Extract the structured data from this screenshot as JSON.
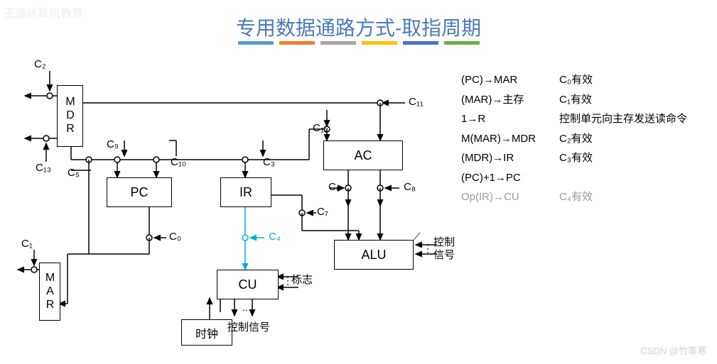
{
  "watermark_top": "王道计算机教育",
  "watermark_bottom": "CSDN @竹等寒",
  "title": "专用数据通路方式-取指周期",
  "color_bars": [
    "#5b9bd5",
    "#ed7d31",
    "#a5a5a5",
    "#ffc000",
    "#4472c4",
    "#70ad47"
  ],
  "boxes": {
    "mdr": "MDR",
    "mar": "MAR",
    "pc": "PC",
    "ir": "IR",
    "ac": "AC",
    "alu": "ALU",
    "cu": "CU",
    "clock": "时钟"
  },
  "labels": {
    "c0": "C₀",
    "c1": "C₁",
    "c2": "C₂",
    "c3": "C₃",
    "c4": "C₄",
    "c5": "C₅",
    "c6": "C₆",
    "c7": "C₇",
    "c8": "C₈",
    "c9": "C₉",
    "c10": "C₁₀",
    "c11": "C₁₁",
    "c12": "C₁₂",
    "c13": "C₁₃",
    "flag": "标志",
    "ctrl_signal": "控制信号",
    "ctrl": "控制",
    "signal": "信号"
  },
  "steps": [
    {
      "op": "(PC)→MAR",
      "sig": "C₀有效"
    },
    {
      "op": "(MAR)→主存",
      "sig": "C₁有效"
    },
    {
      "op": "1→R",
      "sig": "控制单元向主存发送读命令"
    },
    {
      "op": "M(MAR)→MDR",
      "sig": "C₂有效"
    },
    {
      "op": "(MDR)→IR",
      "sig": "C₃有效"
    },
    {
      "op": "(PC)+1→PC",
      "sig": ""
    },
    {
      "op": "Op(IR)→CU",
      "sig": "C₄有效",
      "gray": true
    }
  ]
}
